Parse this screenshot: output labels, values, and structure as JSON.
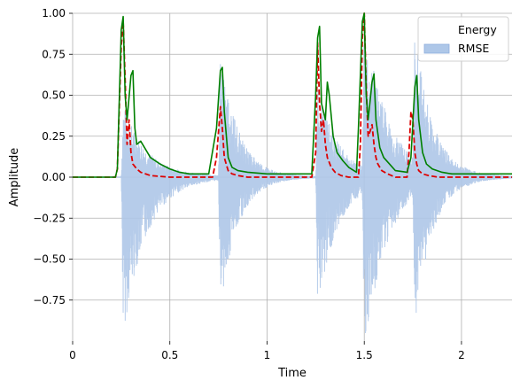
{
  "chart_data": {
    "type": "line",
    "xlabel": "Time",
    "ylabel": "Amplitude",
    "xlim": [
      0,
      2.26
    ],
    "ylim": [
      -1.0,
      1.0
    ],
    "xticks": [
      0,
      0.5,
      1,
      1.5,
      2
    ],
    "xtick_labels": [
      "0",
      "0.5",
      "1",
      "1.5",
      "2"
    ],
    "yticks": [
      -0.75,
      -0.5,
      -0.25,
      0.0,
      0.25,
      0.5,
      0.75,
      1.0
    ],
    "ytick_labels": [
      "−0.75",
      "−0.50",
      "−0.25",
      "0.00",
      "0.25",
      "0.50",
      "0.75",
      "1.00"
    ],
    "grid": true,
    "legend_position": "top-right",
    "legend": [
      {
        "label": "Energy",
        "style": "none"
      },
      {
        "label": "RMSE",
        "style": "patch",
        "color": "#aec7e8"
      }
    ],
    "series": [
      {
        "name": "Energy",
        "style": "dashed",
        "color": "#dd0000",
        "x": [
          0.0,
          0.22,
          0.23,
          0.25,
          0.26,
          0.27,
          0.28,
          0.29,
          0.3,
          0.31,
          0.33,
          0.35,
          0.4,
          0.5,
          0.6,
          0.72,
          0.74,
          0.76,
          0.77,
          0.78,
          0.79,
          0.8,
          0.82,
          0.85,
          0.9,
          1.0,
          1.1,
          1.23,
          1.25,
          1.26,
          1.27,
          1.28,
          1.29,
          1.3,
          1.31,
          1.33,
          1.35,
          1.38,
          1.42,
          1.47,
          1.48,
          1.49,
          1.5,
          1.51,
          1.52,
          1.53,
          1.54,
          1.55,
          1.56,
          1.57,
          1.59,
          1.62,
          1.66,
          1.72,
          1.73,
          1.74,
          1.75,
          1.76,
          1.77,
          1.78,
          1.8,
          1.83,
          1.88,
          1.95,
          2.1,
          2.26
        ],
        "y": [
          0.0,
          0.0,
          0.05,
          0.8,
          0.95,
          0.6,
          0.2,
          0.35,
          0.15,
          0.08,
          0.05,
          0.03,
          0.01,
          0.0,
          0.0,
          0.0,
          0.12,
          0.43,
          0.3,
          0.12,
          0.08,
          0.04,
          0.02,
          0.01,
          0.0,
          0.0,
          0.0,
          0.0,
          0.15,
          0.82,
          0.45,
          0.28,
          0.35,
          0.2,
          0.12,
          0.06,
          0.03,
          0.01,
          0.0,
          0.0,
          0.2,
          0.85,
          1.0,
          0.55,
          0.25,
          0.28,
          0.32,
          0.2,
          0.12,
          0.08,
          0.04,
          0.02,
          0.0,
          0.0,
          0.15,
          0.4,
          0.35,
          0.15,
          0.08,
          0.04,
          0.02,
          0.01,
          0.0,
          0.0,
          0.0,
          0.0
        ]
      },
      {
        "name": "Energy",
        "style": "solid",
        "color": "#008000",
        "x": [
          0.0,
          0.22,
          0.23,
          0.25,
          0.26,
          0.27,
          0.28,
          0.3,
          0.31,
          0.32,
          0.33,
          0.35,
          0.37,
          0.4,
          0.45,
          0.5,
          0.55,
          0.6,
          0.7,
          0.74,
          0.76,
          0.77,
          0.78,
          0.8,
          0.82,
          0.85,
          0.9,
          1.0,
          1.1,
          1.23,
          1.25,
          1.26,
          1.27,
          1.28,
          1.3,
          1.31,
          1.32,
          1.34,
          1.36,
          1.39,
          1.42,
          1.46,
          1.47,
          1.49,
          1.5,
          1.51,
          1.52,
          1.54,
          1.55,
          1.56,
          1.58,
          1.6,
          1.63,
          1.66,
          1.72,
          1.74,
          1.76,
          1.77,
          1.78,
          1.8,
          1.82,
          1.85,
          1.9,
          1.95,
          2.1,
          2.26
        ],
        "y": [
          0.0,
          0.0,
          0.05,
          0.9,
          0.98,
          0.5,
          0.35,
          0.62,
          0.65,
          0.3,
          0.2,
          0.22,
          0.18,
          0.12,
          0.08,
          0.05,
          0.03,
          0.02,
          0.02,
          0.3,
          0.65,
          0.67,
          0.4,
          0.12,
          0.06,
          0.04,
          0.03,
          0.02,
          0.02,
          0.02,
          0.5,
          0.85,
          0.92,
          0.45,
          0.35,
          0.58,
          0.5,
          0.25,
          0.15,
          0.1,
          0.06,
          0.03,
          0.3,
          0.95,
          1.0,
          0.5,
          0.35,
          0.58,
          0.63,
          0.35,
          0.18,
          0.12,
          0.08,
          0.04,
          0.03,
          0.12,
          0.55,
          0.62,
          0.35,
          0.15,
          0.08,
          0.05,
          0.03,
          0.02,
          0.02,
          0.02
        ]
      }
    ],
    "waveform": {
      "name": "RMSE",
      "color": "#aec7e8",
      "bursts": [
        {
          "onset": 0.26,
          "peak_up": 0.45,
          "peak_down": -0.97,
          "decay": 0.12
        },
        {
          "onset": 0.76,
          "peak_up": 0.8,
          "peak_down": -0.8,
          "decay": 0.09
        },
        {
          "onset": 1.26,
          "peak_up": 0.55,
          "peak_down": -0.8,
          "decay": 0.11
        },
        {
          "onset": 1.5,
          "peak_up": 0.95,
          "peak_down": -0.99,
          "decay": 0.12
        },
        {
          "onset": 1.76,
          "peak_up": 0.82,
          "peak_down": -0.82,
          "decay": 0.09
        }
      ]
    }
  }
}
